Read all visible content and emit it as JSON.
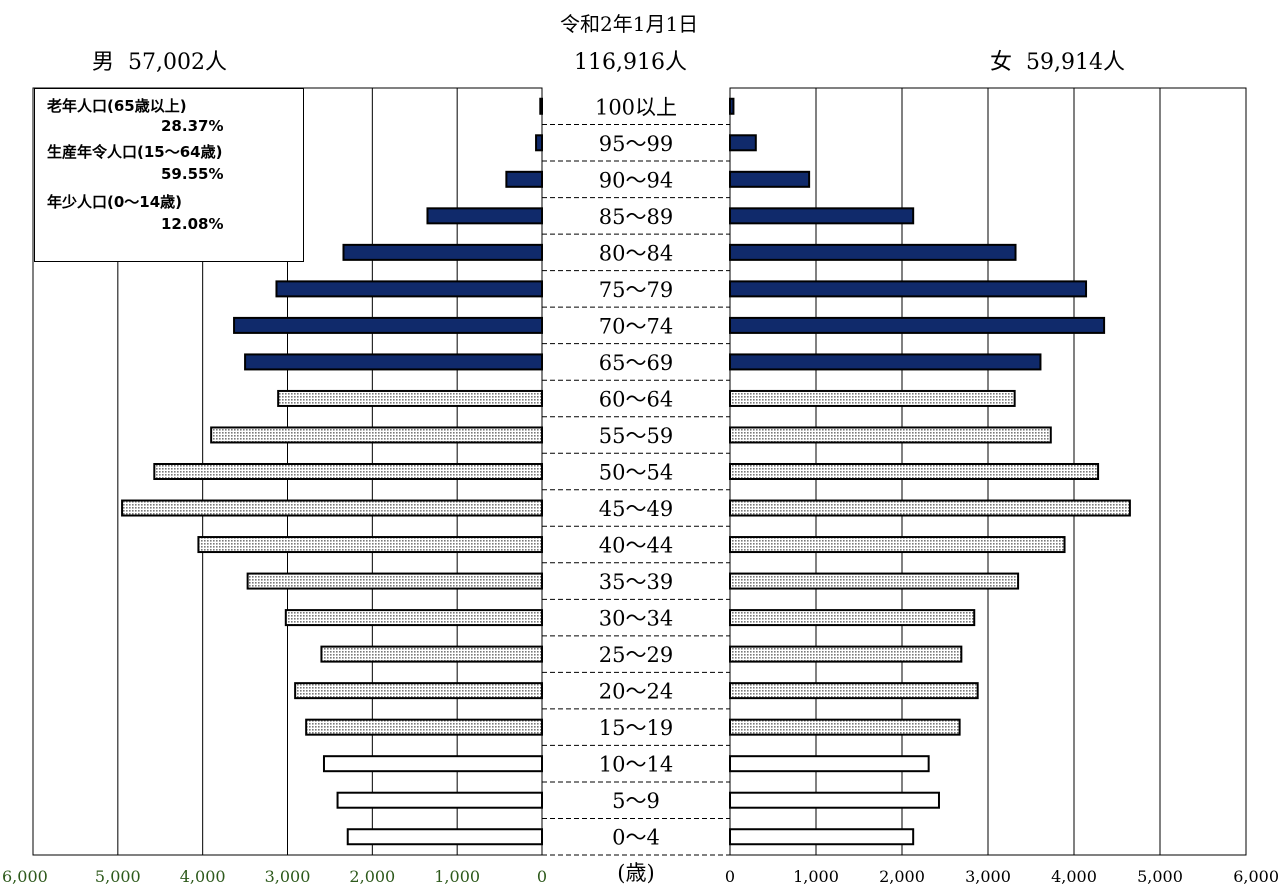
{
  "header": {
    "date": "令和2年1月1日",
    "total": "116,916人",
    "male": "男  57,002人",
    "female": "女  59,914人"
  },
  "legend": [
    {
      "name": "老年人口(65歳以上)",
      "pct": "28.37%"
    },
    {
      "name": "生産年令人口(15～64歳)",
      "pct": "59.55%"
    },
    {
      "name": "年少人口(0～14歳)",
      "pct": "12.08%"
    }
  ],
  "colors": {
    "elderly": "#102a6b",
    "working_dots": "#7a7a7a",
    "youth": "#ffffff",
    "left_tick": "#2e5a1c",
    "right_tick": "#000000"
  },
  "chart_data": {
    "type": "bar",
    "orientation": "horizontal population pyramid",
    "unit_label": "(歳)",
    "categories": [
      "100以上",
      "95～99",
      "90～94",
      "85～89",
      "80～84",
      "75～79",
      "70～74",
      "65～69",
      "60～64",
      "55～59",
      "50～54",
      "45～49",
      "40～44",
      "35～39",
      "30～34",
      "25～29",
      "20～24",
      "15～19",
      "10～14",
      "5～9",
      "0～4"
    ],
    "series": [
      {
        "name": "男",
        "values": [
          20,
          70,
          420,
          1350,
          2340,
          3130,
          3630,
          3500,
          3110,
          3900,
          4570,
          4950,
          4050,
          3470,
          3020,
          2600,
          2910,
          2780,
          2570,
          2410,
          2290
        ]
      },
      {
        "name": "女",
        "values": [
          40,
          300,
          920,
          2130,
          3320,
          4140,
          4350,
          3610,
          3310,
          3730,
          4280,
          4650,
          3890,
          3350,
          2840,
          2690,
          2880,
          2670,
          2310,
          2430,
          2130
        ]
      }
    ],
    "groups": [
      "elderly",
      "elderly",
      "elderly",
      "elderly",
      "elderly",
      "elderly",
      "elderly",
      "elderly",
      "working",
      "working",
      "working",
      "working",
      "working",
      "working",
      "working",
      "working",
      "working",
      "working",
      "youth",
      "youth",
      "youth"
    ],
    "xlim": [
      0,
      6000
    ],
    "left_ticks": [
      "6,000",
      "5,000",
      "4,000",
      "3,000",
      "2,000",
      "1,000",
      "0"
    ],
    "right_ticks": [
      "0",
      "1,000",
      "2,000",
      "3,000",
      "4,000",
      "5,000",
      "6,000"
    ],
    "grid": true
  }
}
